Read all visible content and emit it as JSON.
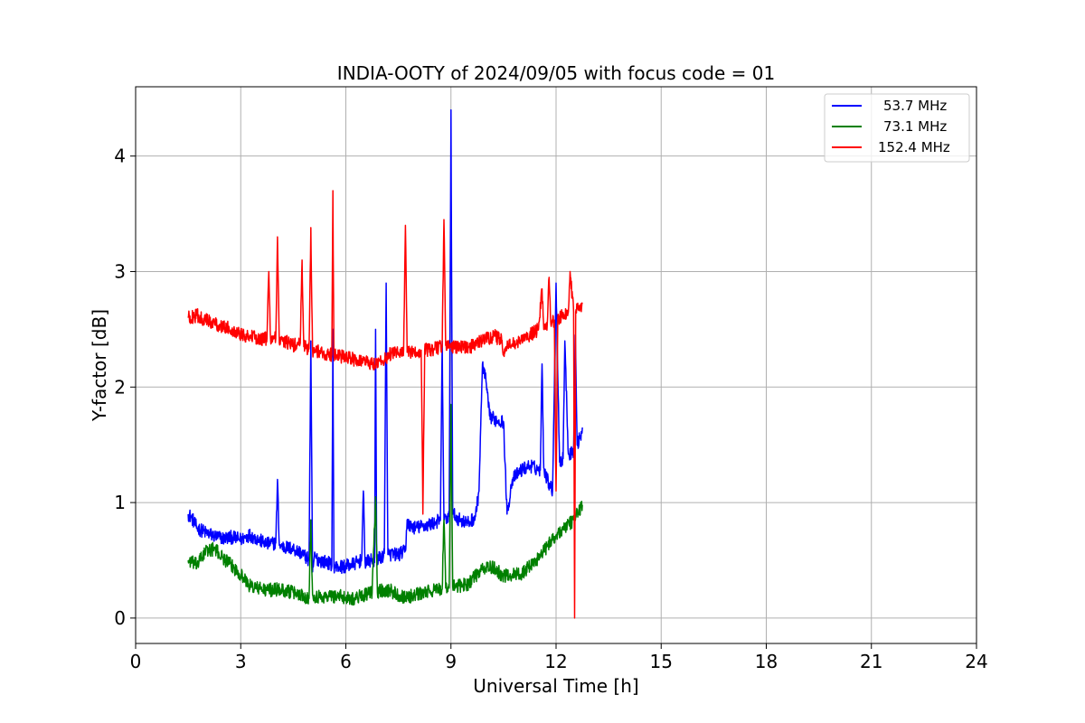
{
  "chart_data": {
    "type": "line",
    "title": "INDIA-OOTY of 2024/09/05 with focus code = 01",
    "xlabel": "Universal Time [h]",
    "ylabel": "Y-factor [dB]",
    "xlim": [
      0,
      24
    ],
    "ylim": [
      -0.22,
      4.6
    ],
    "xticks": [
      0,
      3,
      6,
      9,
      12,
      15,
      18,
      21,
      24
    ],
    "yticks": [
      0,
      1,
      2,
      3,
      4
    ],
    "grid": true,
    "legend_position": "top-right",
    "series": [
      {
        "name": "53.7 MHz",
        "color": "#0000ff",
        "x": [
          1.5,
          1.6,
          1.75,
          2.0,
          2.25,
          2.5,
          2.75,
          3.0,
          3.25,
          3.5,
          3.75,
          4.0,
          4.05,
          4.1,
          4.15,
          4.5,
          4.75,
          4.95,
          5.0,
          5.05,
          5.1,
          5.25,
          5.5,
          5.6,
          5.63,
          5.66,
          5.75,
          6.0,
          6.25,
          6.45,
          6.5,
          6.55,
          6.75,
          6.82,
          6.85,
          6.88,
          7.0,
          7.1,
          7.15,
          7.2,
          7.5,
          7.7,
          7.75,
          7.8,
          8.0,
          8.25,
          8.5,
          8.7,
          8.75,
          8.8,
          8.95,
          9.0,
          9.05,
          9.25,
          9.5,
          9.7,
          9.8,
          9.9,
          10.0,
          10.1,
          10.25,
          10.5,
          10.6,
          10.75,
          11.0,
          11.25,
          11.55,
          11.6,
          11.65,
          11.75,
          11.9,
          12.0,
          12.1,
          12.2,
          12.25,
          12.35,
          12.5,
          12.55,
          12.6,
          12.7,
          12.75
        ],
        "y": [
          0.9,
          0.87,
          0.78,
          0.74,
          0.71,
          0.69,
          0.7,
          0.68,
          0.72,
          0.68,
          0.64,
          0.65,
          1.2,
          0.63,
          0.62,
          0.6,
          0.56,
          0.5,
          2.4,
          0.4,
          0.53,
          0.5,
          0.48,
          0.45,
          2.5,
          0.45,
          0.44,
          0.45,
          0.47,
          0.5,
          1.1,
          0.48,
          0.5,
          0.48,
          2.5,
          0.52,
          0.52,
          0.56,
          2.9,
          0.55,
          0.55,
          0.58,
          0.85,
          0.8,
          0.78,
          0.8,
          0.82,
          0.85,
          2.4,
          0.85,
          0.88,
          4.4,
          0.9,
          0.85,
          0.82,
          0.88,
          1.1,
          2.2,
          2.05,
          1.75,
          1.72,
          1.7,
          0.9,
          1.2,
          1.28,
          1.32,
          1.28,
          2.2,
          1.3,
          1.2,
          1.1,
          2.9,
          1.35,
          1.38,
          2.4,
          1.42,
          1.45,
          2.45,
          1.5,
          1.58,
          1.65
        ]
      },
      {
        "name": "73.1 MHz",
        "color": "#008000",
        "x": [
          1.5,
          1.75,
          2.0,
          2.25,
          2.5,
          2.75,
          3.0,
          3.25,
          3.5,
          3.75,
          4.0,
          4.25,
          4.5,
          4.75,
          4.95,
          5.0,
          5.05,
          5.25,
          5.5,
          5.75,
          6.0,
          6.25,
          6.5,
          6.75,
          6.85,
          6.9,
          7.0,
          7.25,
          7.5,
          7.75,
          8.0,
          8.25,
          8.5,
          8.75,
          8.8,
          8.85,
          8.95,
          9.0,
          9.05,
          9.25,
          9.5,
          9.75,
          10.0,
          10.25,
          10.5,
          10.75,
          11.0,
          11.25,
          11.5,
          11.75,
          12.0,
          12.25,
          12.5,
          12.75
        ],
        "y": [
          0.5,
          0.46,
          0.58,
          0.6,
          0.52,
          0.45,
          0.38,
          0.28,
          0.26,
          0.24,
          0.25,
          0.24,
          0.22,
          0.2,
          0.17,
          0.85,
          0.2,
          0.18,
          0.19,
          0.19,
          0.18,
          0.17,
          0.2,
          0.22,
          1.05,
          0.22,
          0.24,
          0.24,
          0.2,
          0.18,
          0.2,
          0.22,
          0.24,
          0.25,
          0.85,
          0.26,
          0.26,
          1.85,
          0.27,
          0.28,
          0.3,
          0.38,
          0.44,
          0.43,
          0.36,
          0.38,
          0.38,
          0.45,
          0.52,
          0.62,
          0.72,
          0.78,
          0.85,
          0.98
        ]
      },
      {
        "name": "152.4 MHz",
        "color": "#ff0000",
        "x": [
          1.5,
          1.75,
          2.0,
          2.25,
          2.5,
          2.75,
          3.0,
          3.25,
          3.5,
          3.75,
          3.8,
          3.85,
          4.0,
          4.05,
          4.1,
          4.25,
          4.5,
          4.7,
          4.75,
          4.8,
          4.95,
          5.0,
          5.05,
          5.25,
          5.5,
          5.6,
          5.63,
          5.66,
          5.75,
          6.0,
          6.25,
          6.5,
          6.75,
          7.0,
          7.25,
          7.5,
          7.65,
          7.7,
          7.75,
          8.0,
          8.15,
          8.2,
          8.25,
          8.5,
          8.75,
          8.8,
          8.85,
          9.0,
          9.25,
          9.5,
          9.75,
          10.0,
          10.25,
          10.45,
          10.5,
          10.6,
          10.75,
          11.0,
          11.25,
          11.5,
          11.6,
          11.65,
          11.75,
          11.8,
          11.85,
          11.95,
          12.0,
          12.05,
          12.25,
          12.35,
          12.4,
          12.5,
          12.53,
          12.56,
          12.6,
          12.75
        ],
        "y": [
          2.6,
          2.62,
          2.58,
          2.55,
          2.52,
          2.5,
          2.46,
          2.44,
          2.42,
          2.42,
          3.0,
          2.42,
          2.42,
          3.3,
          2.38,
          2.4,
          2.36,
          2.38,
          3.1,
          2.35,
          2.33,
          3.38,
          2.32,
          2.3,
          2.28,
          2.28,
          3.7,
          2.28,
          2.28,
          2.25,
          2.24,
          2.23,
          2.2,
          2.22,
          2.28,
          2.3,
          2.32,
          3.4,
          2.3,
          2.3,
          2.32,
          0.9,
          2.32,
          2.33,
          2.35,
          3.45,
          2.36,
          2.35,
          2.35,
          2.34,
          2.38,
          2.42,
          2.44,
          2.4,
          2.3,
          2.35,
          2.37,
          2.4,
          2.45,
          2.5,
          2.85,
          2.5,
          2.55,
          2.95,
          2.55,
          2.58,
          1.1,
          2.6,
          2.62,
          2.65,
          3.0,
          2.65,
          0.0,
          2.65,
          2.68,
          2.72
        ]
      }
    ]
  }
}
